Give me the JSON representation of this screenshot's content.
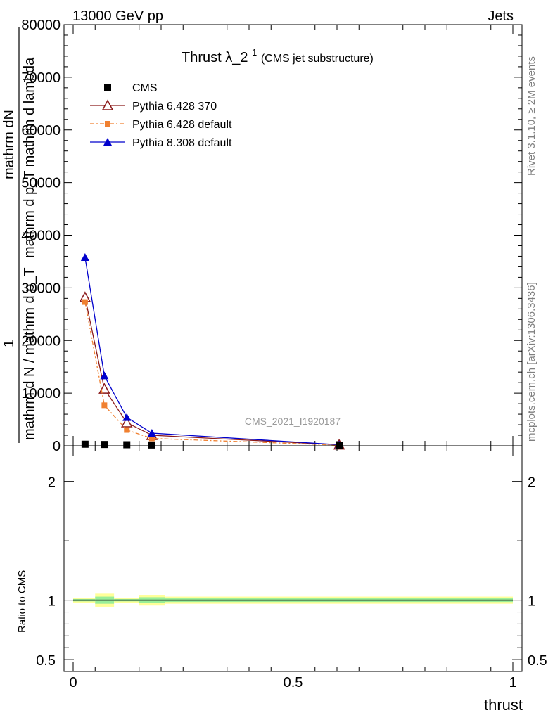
{
  "header": {
    "left": "13000 GeV pp",
    "right": "Jets"
  },
  "side_labels": {
    "rivet": "Rivet 3.1.10, ≥ 2M events",
    "mcplots": "mcplots.cern.ch [arXiv:1306.3436]"
  },
  "chart_data": {
    "type": "line",
    "title_main": "Thrust λ_2",
    "title_sup": "1",
    "title_paren": "(CMS jet substructure)",
    "watermark": "CMS_2021_I1920187",
    "xlabel": "thrust",
    "ylabel_lines": [
      "mathrm dN",
      "mathrm d p_T mathrm d lambda",
      "1",
      "mathrm d N / mathrm d p_T"
    ],
    "ratio_ylabel": "Ratio to CMS",
    "xlim": [
      0,
      1
    ],
    "ylim": [
      0,
      80000
    ],
    "ratio_ylim": [
      0.4,
      2.3
    ],
    "x_ticks": [
      {
        "v": 0,
        "label": "0"
      },
      {
        "v": 0.5,
        "label": "0.5"
      },
      {
        "v": 1,
        "label": "1"
      }
    ],
    "y_ticks": [
      {
        "v": 0,
        "label": "0"
      },
      {
        "v": 10000,
        "label": "10000"
      },
      {
        "v": 20000,
        "label": "20000"
      },
      {
        "v": 30000,
        "label": "30000"
      },
      {
        "v": 40000,
        "label": "40000"
      },
      {
        "v": 50000,
        "label": "50000"
      },
      {
        "v": 60000,
        "label": "60000"
      },
      {
        "v": 70000,
        "label": "70000"
      },
      {
        "v": 80000,
        "label": "80000"
      }
    ],
    "ratio_ticks": [
      {
        "v": 0.5,
        "label": "0.5"
      },
      {
        "v": 1,
        "label": "1"
      },
      {
        "v": 2,
        "label": "2"
      }
    ],
    "x": [
      0.027,
      0.071,
      0.122,
      0.179,
      0.605
    ],
    "series": [
      {
        "name": "CMS",
        "color": "#000000",
        "marker": "square",
        "dash": "",
        "values": [
          300,
          250,
          200,
          150,
          20
        ]
      },
      {
        "name": "Pythia 6.428 370",
        "color": "#8b1a1a",
        "marker": "triangle-open",
        "dash": "",
        "values": [
          28200,
          10800,
          4400,
          2000,
          180
        ]
      },
      {
        "name": "Pythia 6.428 default",
        "color": "#f08030",
        "marker": "square-small",
        "dash": "6,3,2,3",
        "values": [
          27300,
          7700,
          3000,
          1400,
          120
        ]
      },
      {
        "name": "Pythia 8.308 default",
        "color": "#0000cc",
        "marker": "triangle-filled",
        "dash": "",
        "values": [
          35800,
          13300,
          5400,
          2400,
          200
        ]
      }
    ],
    "ratio_bands": [
      {
        "x0": 0.0,
        "x1": 0.05,
        "yellow": [
          0.98,
          1.02
        ],
        "green": [
          0.99,
          1.01
        ]
      },
      {
        "x0": 0.05,
        "x1": 0.093,
        "yellow": [
          0.945,
          1.055
        ],
        "green": [
          0.97,
          1.03
        ]
      },
      {
        "x0": 0.093,
        "x1": 0.15,
        "yellow": [
          0.98,
          1.02
        ],
        "green": [
          0.99,
          1.01
        ]
      },
      {
        "x0": 0.15,
        "x1": 0.208,
        "yellow": [
          0.955,
          1.045
        ],
        "green": [
          0.975,
          1.025
        ]
      },
      {
        "x0": 0.208,
        "x1": 1.0,
        "yellow": [
          0.97,
          1.03
        ],
        "green": [
          0.985,
          1.015
        ]
      }
    ],
    "colors": {
      "band_yellow": "#ffff99",
      "band_green": "#99ee99"
    }
  }
}
